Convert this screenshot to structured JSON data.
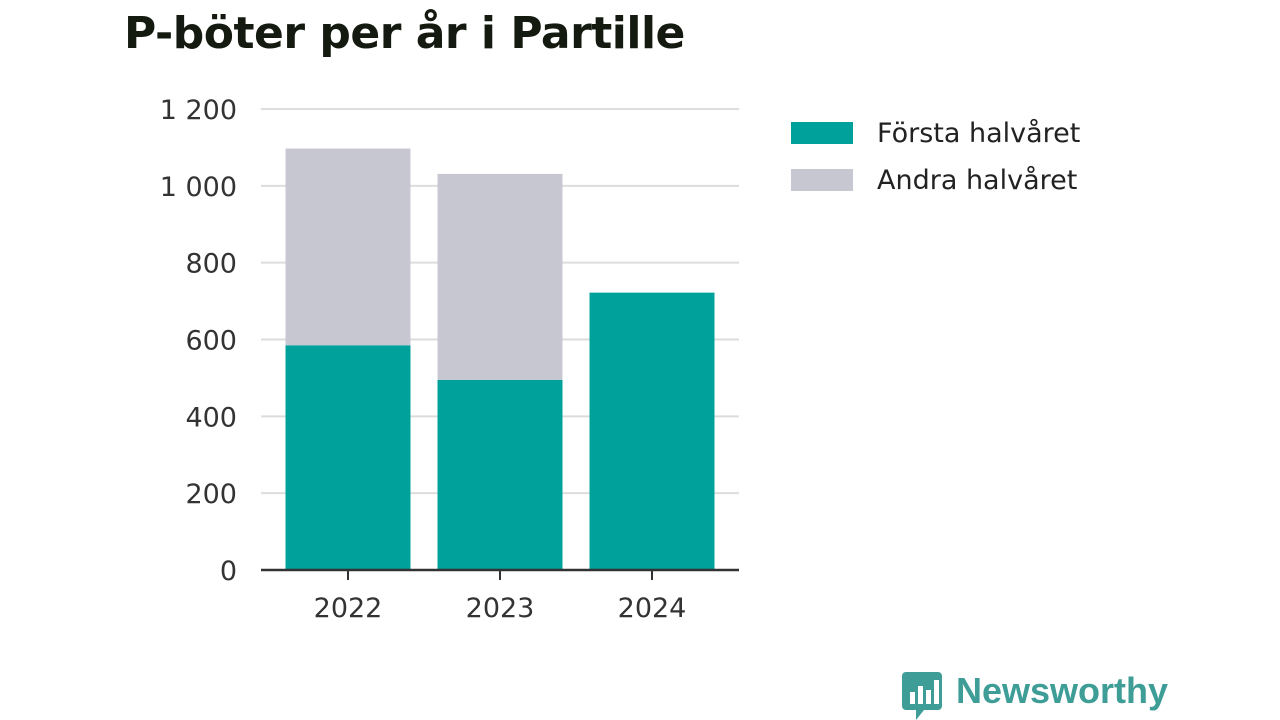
{
  "chart_data": {
    "type": "bar",
    "stacked": true,
    "title": "P-böter per år i Partille",
    "categories": [
      "2022",
      "2023",
      "2024"
    ],
    "series": [
      {
        "name": "Första halvåret",
        "values": [
          585,
          495,
          722
        ],
        "color": "#00a19a"
      },
      {
        "name": "Andra halvåret",
        "values": [
          512,
          536,
          0
        ],
        "color": "#c7c7d2"
      }
    ],
    "ylim": [
      0,
      1200
    ],
    "yticks": [
      0,
      200,
      400,
      600,
      800,
      1000,
      1200
    ],
    "ytick_labels": [
      "0",
      "200",
      "400",
      "600",
      "800",
      "1 000",
      "1 200"
    ],
    "grid": true,
    "legend_position": "top-right",
    "xlabel": "",
    "ylabel": ""
  },
  "brand": {
    "name": "Newsworthy",
    "icon": "bar-chart-speech-bubble-icon",
    "color": "#3e9d96"
  }
}
